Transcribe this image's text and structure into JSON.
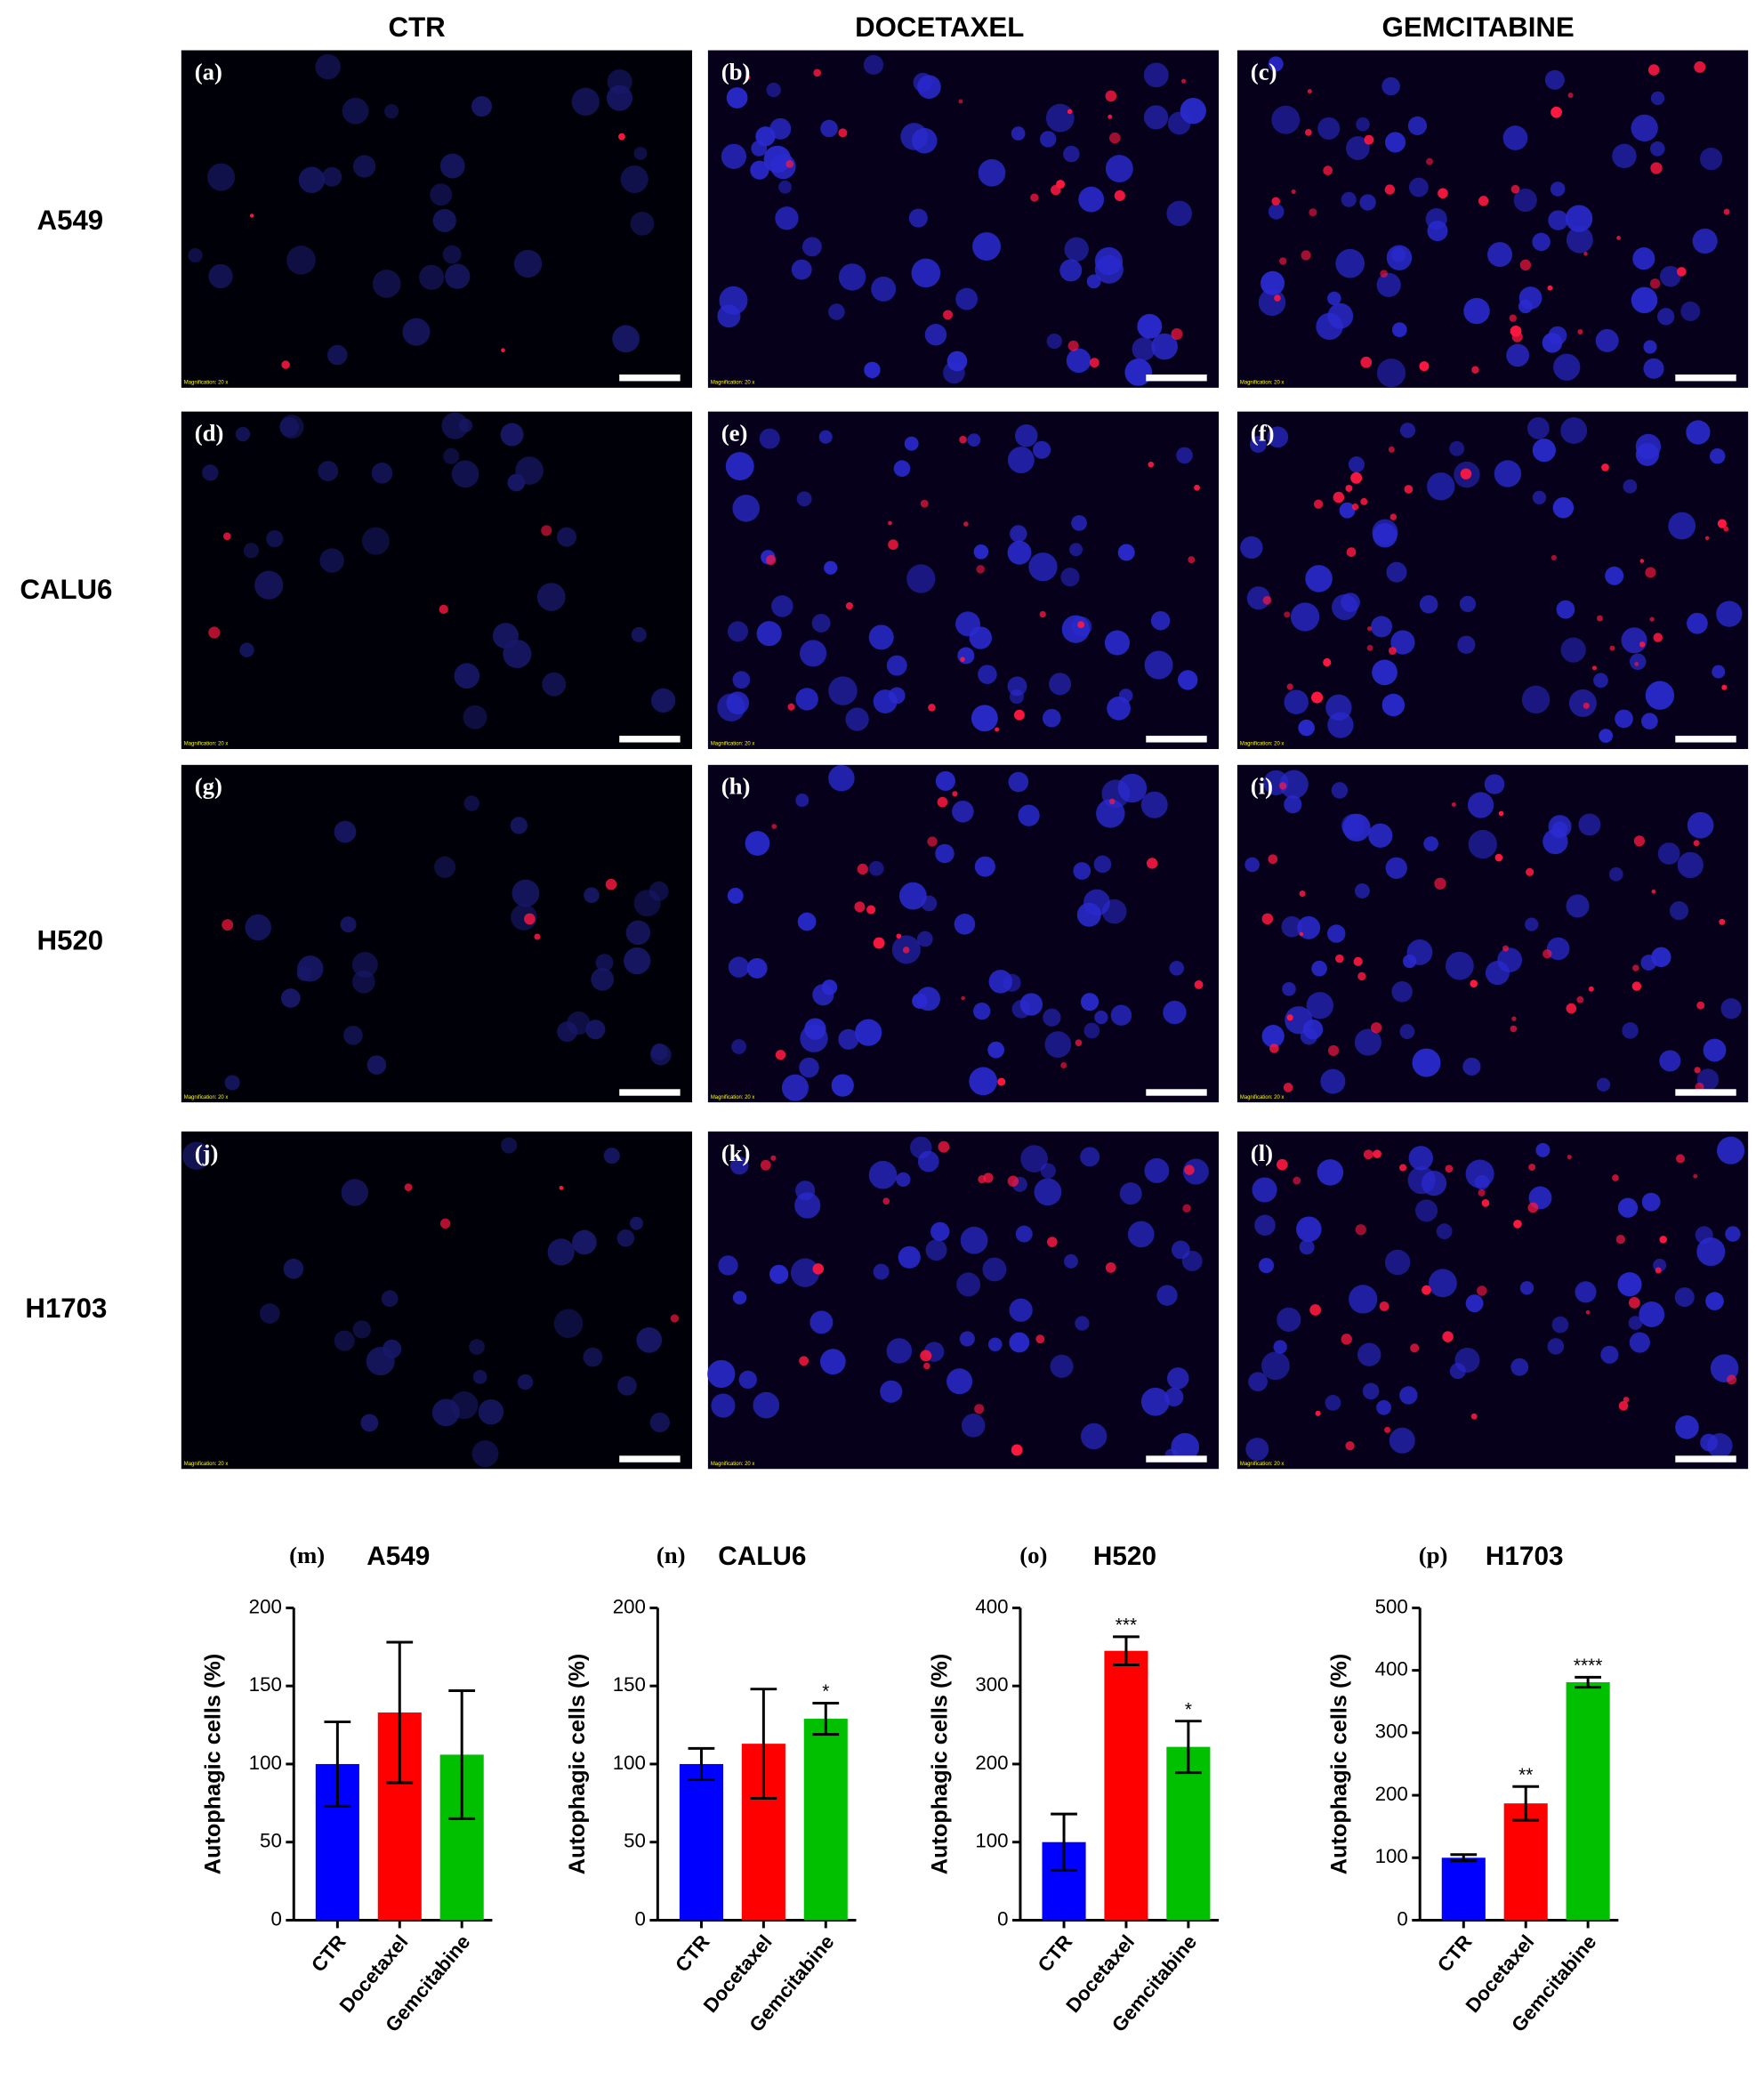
{
  "figure": {
    "column_headers": [
      "CTR",
      "DOCETAXEL",
      "GEMCITABINE"
    ],
    "row_labels": [
      "A549",
      "CALU6",
      "H520",
      "H1703"
    ],
    "panel_labels": [
      "(a)",
      "(b)",
      "(c)",
      "(d)",
      "(e)",
      "(f)",
      "(g)",
      "(h)",
      "(i)",
      "(j)",
      "(k)",
      "(l)"
    ],
    "magnification_label": "Magnification: 20 x"
  },
  "chart_data": [
    {
      "type": "bar",
      "panel_label": "(m)",
      "title": "A549",
      "ylabel": "Autophagic cells  (%)",
      "categories": [
        "CTR",
        "Docetaxel",
        "Gemcitabine"
      ],
      "colors": [
        "#0000ff",
        "#ff0000",
        "#00c000"
      ],
      "values": [
        100,
        133,
        106
      ],
      "errors": [
        27,
        45,
        41
      ],
      "annotations": [
        null,
        null,
        null
      ],
      "ylim": [
        0,
        200
      ],
      "yticks": [
        0,
        50,
        100,
        150,
        200
      ]
    },
    {
      "type": "bar",
      "panel_label": "(n)",
      "title": "CALU6",
      "ylabel": "Autophagic cells  (%)",
      "categories": [
        "CTR",
        "Docetaxel",
        "Gemcitabine"
      ],
      "colors": [
        "#0000ff",
        "#ff0000",
        "#00c000"
      ],
      "values": [
        100,
        113,
        129
      ],
      "errors": [
        10,
        35,
        10
      ],
      "annotations": [
        null,
        null,
        "*"
      ],
      "ylim": [
        0,
        200
      ],
      "yticks": [
        0,
        50,
        100,
        150,
        200
      ]
    },
    {
      "type": "bar",
      "panel_label": "(o)",
      "title": "H520",
      "ylabel": "Autophagic cells  (%)",
      "categories": [
        "CTR",
        "Docetaxel",
        "Gemcitabine"
      ],
      "colors": [
        "#0000ff",
        "#ff0000",
        "#00c000"
      ],
      "values": [
        100,
        345,
        222
      ],
      "errors": [
        36,
        18,
        33
      ],
      "annotations": [
        null,
        "***",
        "*"
      ],
      "ylim": [
        0,
        400
      ],
      "yticks": [
        0,
        100,
        200,
        300,
        400
      ]
    },
    {
      "type": "bar",
      "panel_label": "(p)",
      "title": "H1703",
      "ylabel": "Autophagic cells  (%)",
      "categories": [
        "CTR",
        "Docetaxel",
        "Gemcitabine"
      ],
      "colors": [
        "#0000ff",
        "#ff0000",
        "#00c000"
      ],
      "values": [
        100,
        187,
        381
      ],
      "errors": [
        5,
        27,
        8
      ],
      "annotations": [
        null,
        "**",
        "****"
      ],
      "ylim": [
        0,
        500
      ],
      "yticks": [
        0,
        100,
        200,
        300,
        400,
        500
      ]
    }
  ]
}
